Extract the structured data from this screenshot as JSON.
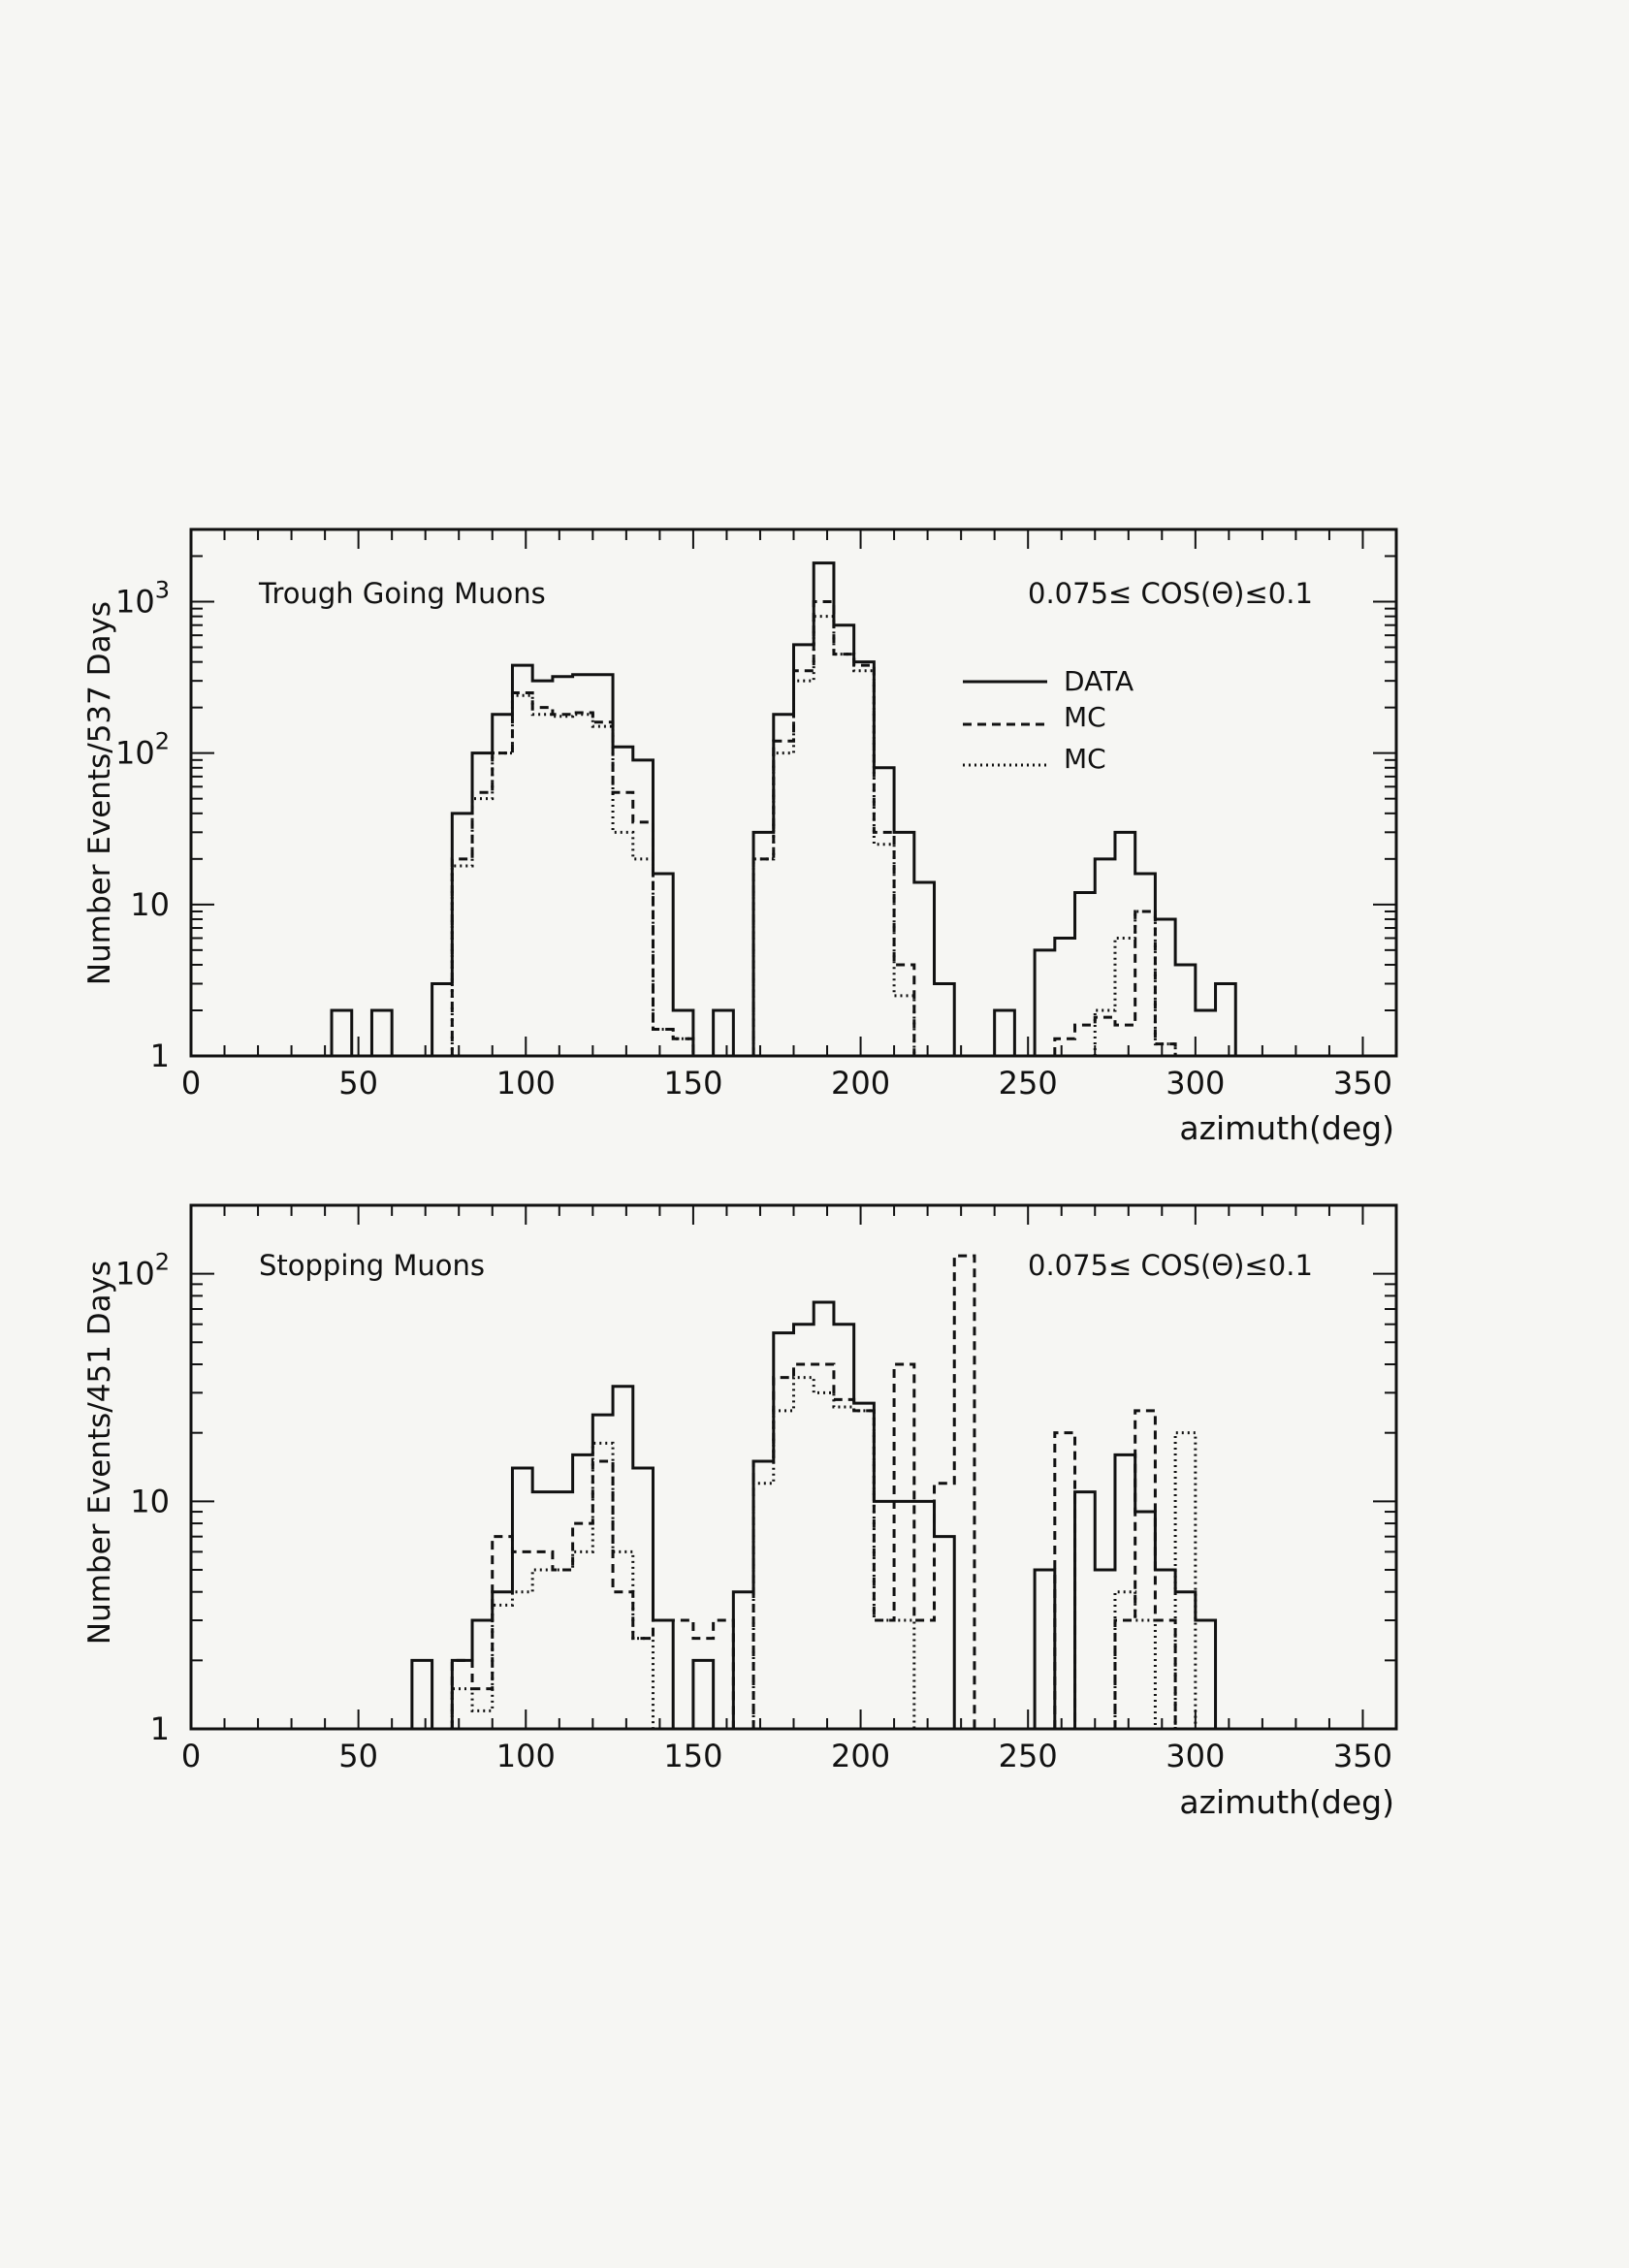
{
  "chart_data": [
    {
      "type": "histogram",
      "title": "Trough Going Muons",
      "cut_label": "0.075≤ COS(Θ)≤0.1",
      "xlabel": "azimuth(deg)",
      "ylabel": "Number Events/537 Days",
      "xlim": [
        0,
        360
      ],
      "ylim": [
        1,
        3000
      ],
      "yscale": "log",
      "xticks": [
        "0",
        "50",
        "100",
        "150",
        "200",
        "250",
        "300",
        "350"
      ],
      "yticks": [
        {
          "value": 1,
          "label": "1",
          "sup": ""
        },
        {
          "value": 10,
          "label": "10",
          "sup": ""
        },
        {
          "value": 100,
          "label": "10",
          "sup": "2"
        },
        {
          "value": 1000,
          "label": "10",
          "sup": "3"
        }
      ],
      "bin_width": 6,
      "legend": [
        {
          "label": "DATA",
          "style": "solid"
        },
        {
          "label": "MC",
          "style": "dashed"
        },
        {
          "label": "MC",
          "style": "dotted"
        }
      ],
      "series": [
        {
          "name": "DATA",
          "style": "solid",
          "bins": [
            [
              42,
              2
            ],
            [
              54,
              2
            ],
            [
              72,
              3
            ],
            [
              78,
              40
            ],
            [
              84,
              100
            ],
            [
              90,
              180
            ],
            [
              96,
              380
            ],
            [
              102,
              300
            ],
            [
              108,
              320
            ],
            [
              114,
              330
            ],
            [
              120,
              330
            ],
            [
              126,
              110
            ],
            [
              132,
              90
            ],
            [
              138,
              16
            ],
            [
              144,
              2
            ],
            [
              156,
              2
            ],
            [
              168,
              30
            ],
            [
              174,
              180
            ],
            [
              180,
              520
            ],
            [
              186,
              1800
            ],
            [
              192,
              700
            ],
            [
              198,
              400
            ],
            [
              204,
              80
            ],
            [
              210,
              30
            ],
            [
              216,
              14
            ],
            [
              222,
              3
            ],
            [
              240,
              2
            ],
            [
              252,
              5
            ],
            [
              258,
              6
            ],
            [
              264,
              12
            ],
            [
              270,
              20
            ],
            [
              276,
              30
            ],
            [
              282,
              16
            ],
            [
              288,
              8
            ],
            [
              294,
              4
            ],
            [
              300,
              2
            ],
            [
              306,
              3
            ]
          ]
        },
        {
          "name": "MC",
          "style": "dashed",
          "bins": [
            [
              78,
              20
            ],
            [
              84,
              55
            ],
            [
              90,
              100
            ],
            [
              96,
              250
            ],
            [
              102,
              200
            ],
            [
              108,
              180
            ],
            [
              114,
              185
            ],
            [
              120,
              160
            ],
            [
              126,
              55
            ],
            [
              132,
              35
            ],
            [
              138,
              1.5
            ],
            [
              144,
              1.3
            ],
            [
              168,
              20
            ],
            [
              174,
              120
            ],
            [
              180,
              350
            ],
            [
              186,
              1000
            ],
            [
              192,
              450
            ],
            [
              198,
              380
            ],
            [
              204,
              30
            ],
            [
              210,
              4
            ],
            [
              258,
              1.3
            ],
            [
              264,
              1.6
            ],
            [
              270,
              1.8
            ],
            [
              276,
              1.6
            ],
            [
              282,
              9
            ],
            [
              288,
              1.2
            ]
          ]
        },
        {
          "name": "MC",
          "style": "dotted",
          "bins": [
            [
              78,
              18
            ],
            [
              84,
              50
            ],
            [
              90,
              100
            ],
            [
              96,
              240
            ],
            [
              102,
              180
            ],
            [
              108,
              175
            ],
            [
              114,
              180
            ],
            [
              120,
              150
            ],
            [
              126,
              30
            ],
            [
              132,
              20
            ],
            [
              138,
              1.5
            ],
            [
              144,
              1.3
            ],
            [
              168,
              20
            ],
            [
              174,
              100
            ],
            [
              180,
              300
            ],
            [
              186,
              800
            ],
            [
              192,
              450
            ],
            [
              198,
              350
            ],
            [
              204,
              25
            ],
            [
              210,
              2.5
            ],
            [
              270,
              2
            ],
            [
              276,
              6
            ],
            [
              282,
              9
            ],
            [
              288,
              1.2
            ]
          ]
        }
      ]
    },
    {
      "type": "histogram",
      "title": "Stopping Muons",
      "cut_label": "0.075≤ COS(Θ)≤0.1",
      "xlabel": "azimuth(deg)",
      "ylabel": "Number Events/451 Days",
      "xlim": [
        0,
        360
      ],
      "ylim": [
        1,
        200
      ],
      "yscale": "log",
      "xticks": [
        "0",
        "50",
        "100",
        "150",
        "200",
        "250",
        "300",
        "350"
      ],
      "yticks": [
        {
          "value": 1,
          "label": "1",
          "sup": ""
        },
        {
          "value": 10,
          "label": "10",
          "sup": ""
        },
        {
          "value": 100,
          "label": "10",
          "sup": "2"
        }
      ],
      "bin_width": 6,
      "series": [
        {
          "name": "DATA",
          "style": "solid",
          "bins": [
            [
              66,
              2
            ],
            [
              78,
              2
            ],
            [
              84,
              3
            ],
            [
              90,
              4
            ],
            [
              96,
              14
            ],
            [
              102,
              11
            ],
            [
              108,
              11
            ],
            [
              114,
              16
            ],
            [
              120,
              24
            ],
            [
              126,
              32
            ],
            [
              132,
              14
            ],
            [
              138,
              3
            ],
            [
              150,
              2
            ],
            [
              162,
              4
            ],
            [
              168,
              15
            ],
            [
              174,
              55
            ],
            [
              180,
              60
            ],
            [
              186,
              75
            ],
            [
              192,
              60
            ],
            [
              198,
              27
            ],
            [
              204,
              10
            ],
            [
              210,
              10
            ],
            [
              216,
              10
            ],
            [
              222,
              7
            ],
            [
              252,
              5
            ],
            [
              264,
              11
            ],
            [
              270,
              5
            ],
            [
              276,
              16
            ],
            [
              282,
              9
            ],
            [
              288,
              5
            ],
            [
              294,
              4
            ],
            [
              300,
              3
            ]
          ]
        },
        {
          "name": "MC",
          "style": "dashed",
          "bins": [
            [
              78,
              2
            ],
            [
              84,
              1.5
            ],
            [
              90,
              7
            ],
            [
              96,
              6
            ],
            [
              102,
              6
            ],
            [
              108,
              5
            ],
            [
              114,
              8
            ],
            [
              120,
              15
            ],
            [
              126,
              4
            ],
            [
              132,
              2.5
            ],
            [
              138,
              3
            ],
            [
              144,
              3
            ],
            [
              150,
              2.5
            ],
            [
              156,
              3
            ],
            [
              168,
              15
            ],
            [
              174,
              35
            ],
            [
              180,
              40
            ],
            [
              186,
              40
            ],
            [
              192,
              28
            ],
            [
              198,
              25
            ],
            [
              204,
              3
            ],
            [
              210,
              40
            ],
            [
              216,
              3
            ],
            [
              222,
              12
            ],
            [
              228,
              120
            ],
            [
              258,
              20
            ],
            [
              276,
              3
            ],
            [
              282,
              25
            ],
            [
              288,
              3
            ]
          ]
        },
        {
          "name": "MC",
          "style": "dotted",
          "bins": [
            [
              78,
              1.5
            ],
            [
              84,
              1.2
            ],
            [
              90,
              3.5
            ],
            [
              96,
              4
            ],
            [
              102,
              5
            ],
            [
              108,
              5
            ],
            [
              114,
              6
            ],
            [
              120,
              18
            ],
            [
              126,
              6
            ],
            [
              132,
              2.5
            ],
            [
              168,
              12
            ],
            [
              174,
              25
            ],
            [
              180,
              35
            ],
            [
              186,
              30
            ],
            [
              192,
              26
            ],
            [
              198,
              25
            ],
            [
              204,
              3
            ],
            [
              210,
              3
            ],
            [
              276,
              4
            ],
            [
              282,
              3
            ],
            [
              294,
              20
            ]
          ]
        }
      ]
    }
  ]
}
